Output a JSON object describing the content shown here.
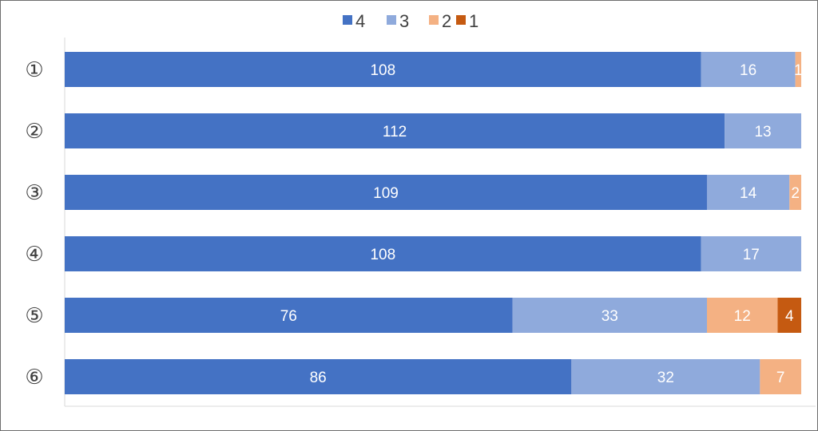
{
  "chart_data": {
    "type": "bar",
    "orientation": "horizontal",
    "stacked": "100%",
    "categories": [
      "①",
      "②",
      "③",
      "④",
      "⑤",
      "⑥"
    ],
    "series": [
      {
        "name": "4",
        "color": "#4472c4",
        "values": [
          108,
          112,
          109,
          108,
          76,
          86
        ]
      },
      {
        "name": "3",
        "color": "#8faadc",
        "values": [
          16,
          13,
          14,
          17,
          33,
          32
        ]
      },
      {
        "name": "2",
        "color": "#f4b183",
        "values": [
          1,
          0,
          2,
          0,
          12,
          7
        ]
      },
      {
        "name": "1",
        "color": "#c55a11",
        "values": [
          0,
          0,
          0,
          0,
          4,
          0
        ]
      }
    ],
    "legend": "top-center",
    "grid": false,
    "data_labels": true,
    "title": "",
    "xlabel": "",
    "ylabel": ""
  }
}
